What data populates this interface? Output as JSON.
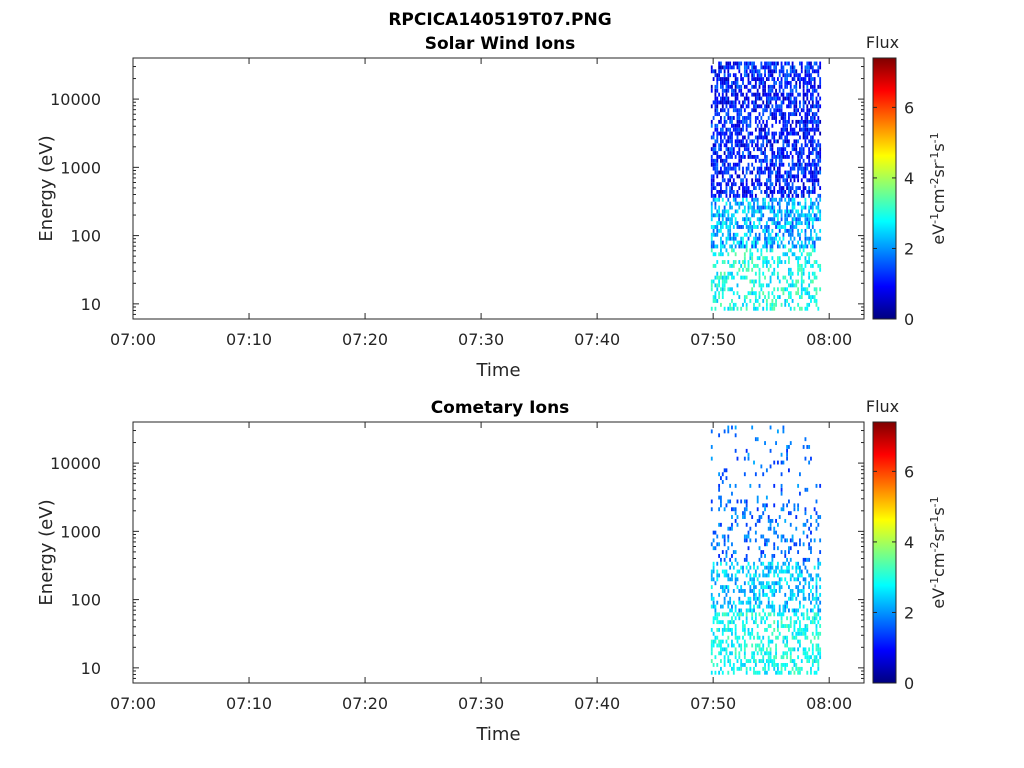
{
  "figure": {
    "title": "RPCICA140519T07.PNG"
  },
  "colorscale": {
    "stops": [
      "#00007f",
      "#0000ff",
      "#007fff",
      "#00ffff",
      "#7fff7f",
      "#ffff00",
      "#ff7f00",
      "#ff0000",
      "#7f0000"
    ]
  },
  "chart_data": [
    {
      "type": "heatmap",
      "title": "Solar Wind Ions",
      "xlabel": "Time",
      "ylabel": "Energy (eV)",
      "x_ticks": [
        "07:00",
        "07:10",
        "07:20",
        "07:30",
        "07:40",
        "07:50",
        "08:00"
      ],
      "x_range_minutes": [
        0,
        63
      ],
      "x_tick_minutes": [
        0,
        10,
        20,
        30,
        40,
        50,
        60
      ],
      "y_scale": "log",
      "y_ticks": [
        "10",
        "100",
        "1000",
        "10000"
      ],
      "y_tick_values": [
        10,
        100,
        1000,
        10000
      ],
      "y_range": [
        6,
        40000
      ],
      "data_time_range_minutes": [
        49.8,
        59.3
      ],
      "colorbar": {
        "label": "Flux",
        "units": "eV-1cm-2sr-1s-1",
        "ticks": [
          "0",
          "2",
          "4",
          "6"
        ],
        "tick_values": [
          0,
          2,
          4,
          6
        ],
        "range": [
          0,
          7.4
        ]
      },
      "grid": false,
      "distribution": "solar"
    },
    {
      "type": "heatmap",
      "title": "Cometary Ions",
      "xlabel": "Time",
      "ylabel": "Energy (eV)",
      "x_ticks": [
        "07:00",
        "07:10",
        "07:20",
        "07:30",
        "07:40",
        "07:50",
        "08:00"
      ],
      "x_range_minutes": [
        0,
        63
      ],
      "x_tick_minutes": [
        0,
        10,
        20,
        30,
        40,
        50,
        60
      ],
      "y_scale": "log",
      "y_ticks": [
        "10",
        "100",
        "1000",
        "10000"
      ],
      "y_tick_values": [
        10,
        100,
        1000,
        10000
      ],
      "y_range": [
        6,
        40000
      ],
      "data_time_range_minutes": [
        49.8,
        59.3
      ],
      "colorbar": {
        "label": "Flux",
        "units": "eV-1cm-2sr-1s-1",
        "ticks": [
          "0",
          "2",
          "4",
          "6"
        ],
        "tick_values": [
          0,
          2,
          4,
          6
        ],
        "range": [
          0,
          7.4
        ]
      },
      "grid": false,
      "distribution": "cometary"
    }
  ]
}
